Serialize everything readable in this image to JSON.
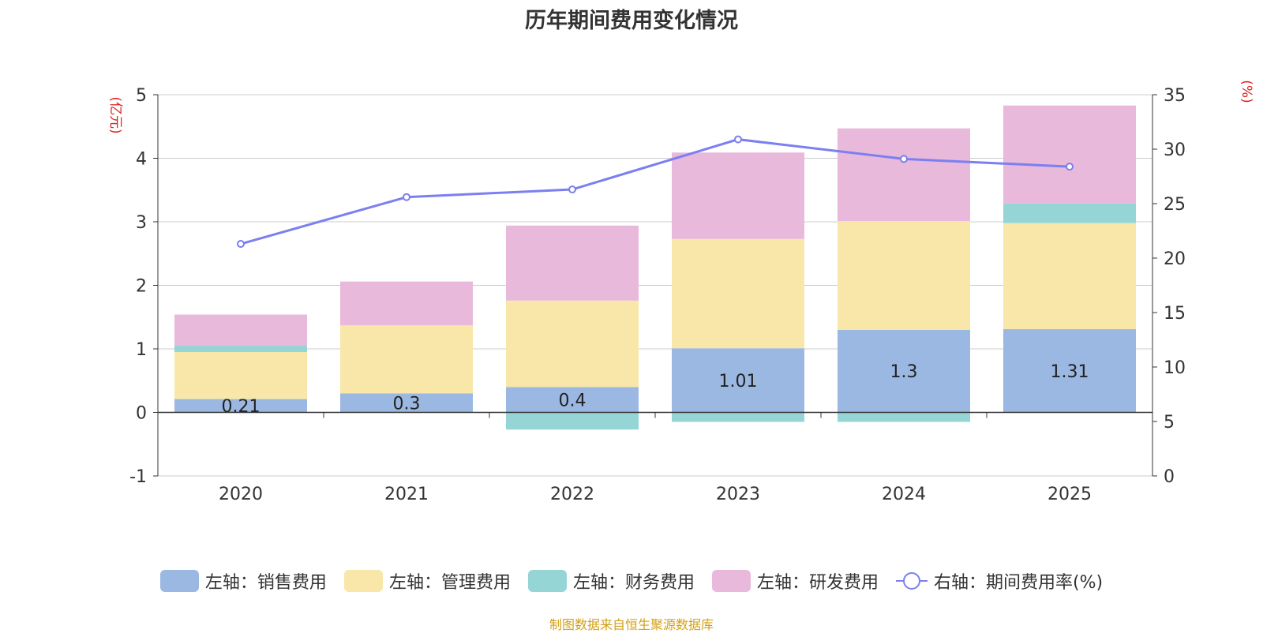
{
  "chart_data": {
    "type": "bar",
    "title": "历年期间费用变化情况",
    "categories": [
      "2020",
      "2021",
      "2022",
      "2023",
      "2024",
      "2025"
    ],
    "y_left": {
      "label": "(亿元)",
      "ylim": [
        -1,
        5
      ],
      "ticks": [
        -1,
        0,
        1,
        2,
        3,
        4,
        5
      ]
    },
    "y_right": {
      "label": "(%)",
      "ylim": [
        0,
        35
      ],
      "ticks": [
        0,
        5,
        10,
        15,
        20,
        25,
        30,
        35
      ]
    },
    "series": [
      {
        "name": "左轴：销售费用",
        "axis": "left",
        "stack": "cost",
        "color": "#9bb8e2",
        "values": [
          0.21,
          0.3,
          0.4,
          1.01,
          1.3,
          1.31
        ],
        "labels": [
          "0.21",
          "0.3",
          "0.4",
          "1.01",
          "1.3",
          "1.31"
        ]
      },
      {
        "name": "左轴：管理费用",
        "axis": "left",
        "stack": "cost",
        "color": "#f8e7a8",
        "values": [
          0.74,
          1.07,
          1.36,
          1.72,
          1.71,
          1.67
        ]
      },
      {
        "name": "左轴：财务费用",
        "axis": "left",
        "stack": "cost",
        "color": "#96d5d5",
        "values": [
          0.11,
          0.0,
          -0.27,
          -0.15,
          -0.15,
          0.31
        ]
      },
      {
        "name": "左轴：研发费用",
        "axis": "left",
        "stack": "cost",
        "color": "#e8b9da",
        "values": [
          0.48,
          0.69,
          1.18,
          1.36,
          1.46,
          1.54
        ]
      },
      {
        "name": "右轴：期间费用率(%)",
        "axis": "right",
        "type": "line",
        "color": "#7b7ff0",
        "values": [
          21.3,
          25.6,
          26.3,
          30.9,
          29.1,
          28.4
        ]
      }
    ]
  },
  "source": "制图数据来自恒生聚源数据库"
}
